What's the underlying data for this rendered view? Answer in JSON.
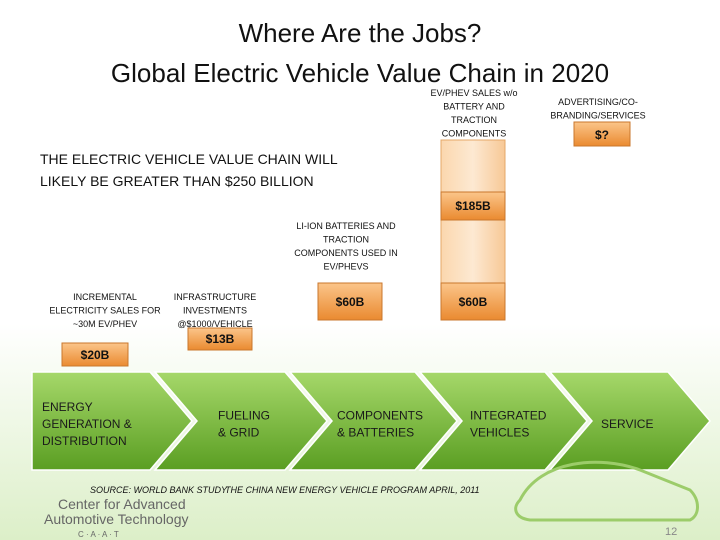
{
  "header": {
    "title": [
      "Where Are the Jobs?",
      "Global Electric Vehicle Value Chain in 2020"
    ]
  },
  "callout": [
    "THE ELECTRIC VEHICLE VALUE CHAIN WILL",
    "LIKELY BE GREATER THAN $250 BILLION"
  ],
  "segments": [
    {
      "label": [
        "INCREMENTAL",
        "ELECTRICITY SALES FOR",
        "~30M EV/PHEV"
      ],
      "value": "$20B"
    },
    {
      "label": [
        "INFRASTRUCTURE",
        "INVESTMENTS",
        "@$1000/VEHICLE"
      ],
      "value": "$13B"
    },
    {
      "label": [
        "LI-ION BATTERIES AND",
        "TRACTION",
        "COMPONENTS USED IN",
        "EV/PHEVS"
      ],
      "value": "$60B"
    },
    {
      "label": [
        "EV/PHEV SALES w/o",
        "BATTERY AND",
        "TRACTION",
        "COMPONENTS"
      ],
      "value": "$60B",
      "upper_value": "$185B"
    },
    {
      "label": [
        "ADVERTISING/CO-",
        "BRANDING/SERVICES"
      ],
      "value": "$?"
    }
  ],
  "chain": [
    [
      "ENERGY",
      "GENERATION &",
      "DISTRIBUTION"
    ],
    [
      "FUELING",
      "& GRID"
    ],
    [
      "COMPONENTS",
      "& BATTERIES"
    ],
    [
      "INTEGRATED",
      "VEHICLES"
    ],
    [
      "SERVICE"
    ]
  ],
  "footer": {
    "source": "SOURCE: WORLD BANK STUDY",
    "reference": "THE CHINA NEW ENERGY VEHICLE PROGRAM   APRIL, 2011",
    "logo": [
      "Center for Advanced",
      "Automotive Technology",
      "C · A · A · T"
    ],
    "page": "12"
  }
}
